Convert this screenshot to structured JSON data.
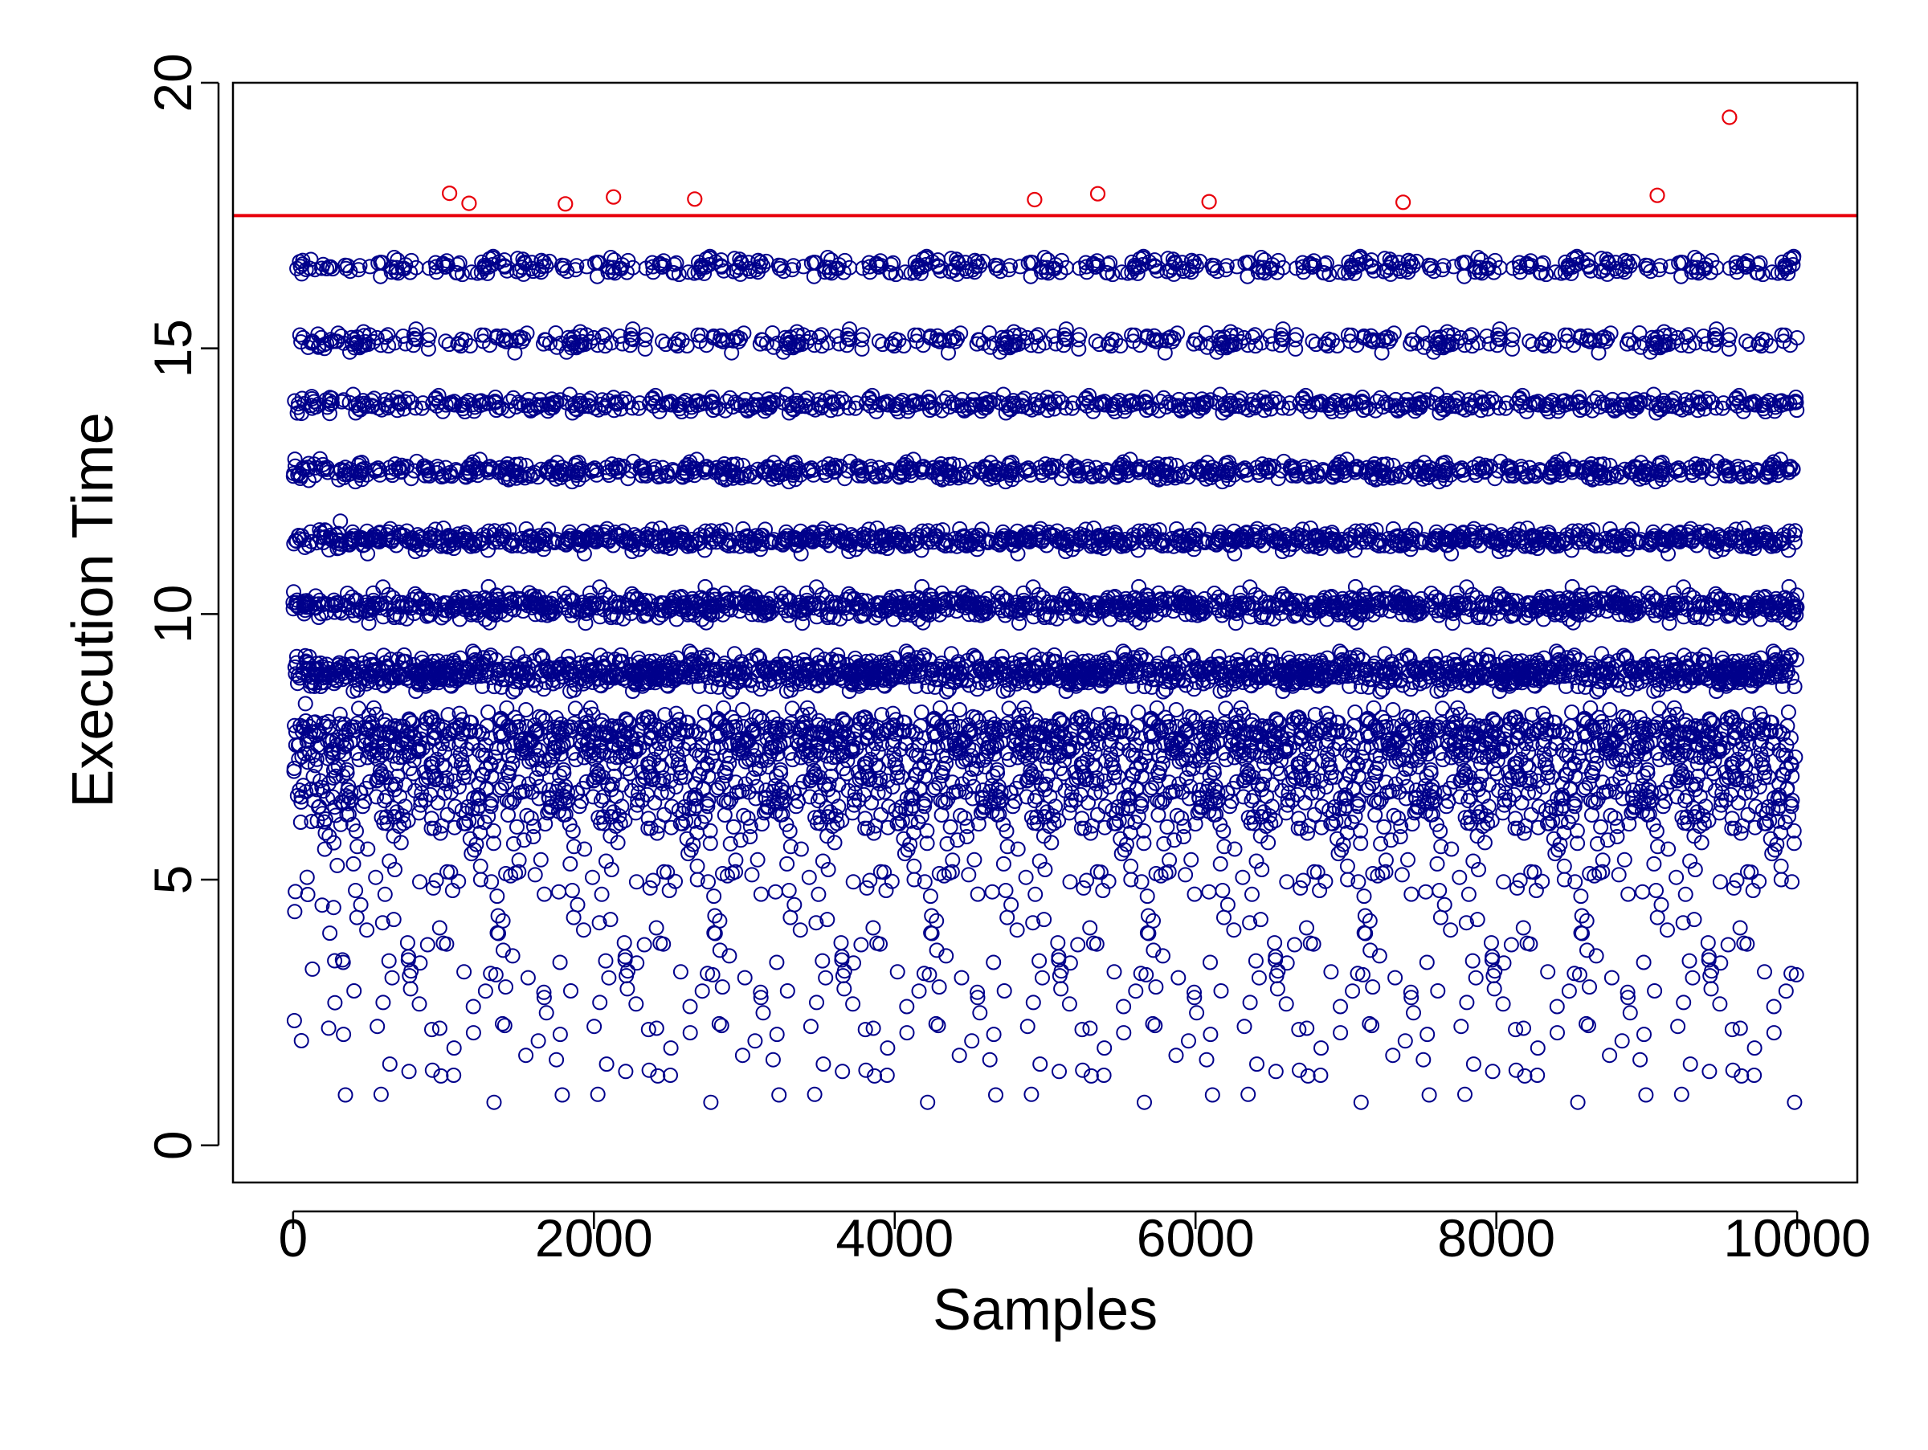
{
  "chart_data": {
    "type": "scatter",
    "title": "",
    "xlabel": "Samples",
    "ylabel": "Execution Time",
    "xlim": [
      -400,
      10400
    ],
    "ylim": [
      -0.7,
      20.0
    ],
    "x_ticks": [
      0,
      2000,
      4000,
      6000,
      8000,
      10000
    ],
    "x_tick_labels": [
      "0",
      "2000",
      "4000",
      "6000",
      "8000",
      "10000"
    ],
    "y_ticks": [
      0,
      5,
      10,
      15,
      20
    ],
    "y_tick_labels": [
      "0",
      "5",
      "10",
      "15",
      "20"
    ],
    "grid": false,
    "legend": "none",
    "threshold": {
      "y": 17.5,
      "color": "#e8000b"
    },
    "series": [
      {
        "color": "#00008b",
        "marker": "open-circle",
        "n_points": 10000,
        "x_range": [
          0,
          10000
        ],
        "bands": [
          {
            "center": 16.55,
            "spread": 0.13,
            "weight": 5
          },
          {
            "center": 15.15,
            "spread": 0.12,
            "weight": 6
          },
          {
            "center": 13.95,
            "spread": 0.11,
            "weight": 8
          },
          {
            "center": 12.7,
            "spread": 0.12,
            "weight": 10
          },
          {
            "center": 11.4,
            "spread": 0.14,
            "weight": 12
          },
          {
            "center": 10.15,
            "spread": 0.16,
            "weight": 16
          },
          {
            "center": 8.9,
            "spread": 0.22,
            "weight": 20
          },
          {
            "center": 7.7,
            "spread": 0.4,
            "weight": 15
          },
          {
            "center": 6.6,
            "spread": 0.55,
            "weight": 10
          }
        ],
        "diffuse_range": [
          0.1,
          8.0
        ],
        "diffuse_fraction": 0.12
      },
      {
        "color": "#e8000b",
        "marker": "open-circle",
        "points": [
          {
            "x": 1040,
            "y": 17.92
          },
          {
            "x": 1170,
            "y": 17.73
          },
          {
            "x": 1810,
            "y": 17.72
          },
          {
            "x": 2130,
            "y": 17.85
          },
          {
            "x": 2670,
            "y": 17.81
          },
          {
            "x": 4930,
            "y": 17.8
          },
          {
            "x": 5350,
            "y": 17.91
          },
          {
            "x": 6090,
            "y": 17.76
          },
          {
            "x": 7380,
            "y": 17.75
          },
          {
            "x": 9070,
            "y": 17.88
          },
          {
            "x": 9550,
            "y": 19.35
          }
        ]
      }
    ]
  }
}
